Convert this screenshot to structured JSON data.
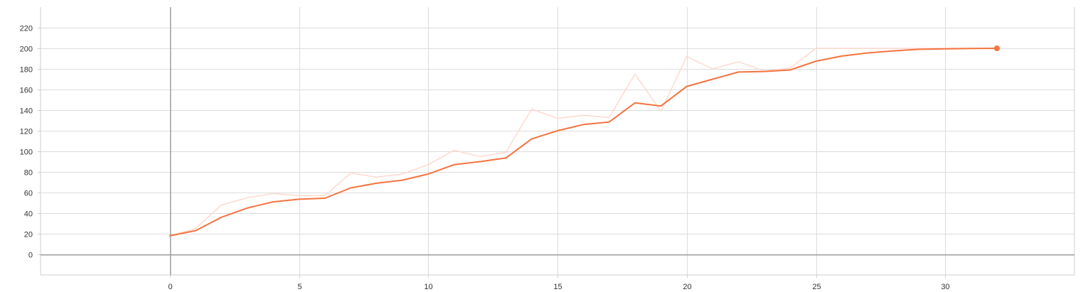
{
  "chart_data": {
    "type": "line",
    "title": "",
    "xlabel": "",
    "ylabel": "",
    "xlim": [
      -5,
      35
    ],
    "ylim": [
      -20,
      240
    ],
    "x_ticks": [
      0,
      5,
      10,
      15,
      20,
      25,
      30
    ],
    "y_ticks": [
      0,
      20,
      40,
      60,
      80,
      100,
      120,
      140,
      160,
      180,
      200,
      220
    ],
    "x_tick_labels": [
      "0",
      "5",
      "10",
      "15",
      "20",
      "25",
      "30"
    ],
    "y_tick_labels": [
      "0",
      "20",
      "40",
      "60",
      "80",
      "100",
      "120",
      "140",
      "160",
      "180",
      "200",
      "220"
    ],
    "grid": true,
    "series": [
      {
        "role": "raw",
        "color": "#ffd9cf",
        "x": [
          0,
          1,
          2,
          3,
          4,
          5,
          6,
          7,
          8,
          9,
          10,
          11,
          12,
          13,
          14,
          15,
          16,
          17,
          18,
          19,
          20,
          21,
          22,
          23,
          24,
          25,
          26,
          27,
          28,
          29,
          30,
          31,
          32
        ],
        "values": [
          18,
          25,
          48,
          55,
          59,
          57,
          57,
          79,
          75,
          78,
          87,
          101,
          95,
          99,
          141,
          132,
          135,
          133,
          175,
          139,
          192,
          180,
          187,
          178,
          181,
          200,
          200,
          200,
          200,
          200,
          200,
          200,
          200
        ]
      },
      {
        "role": "smoothed",
        "color": "#f4733f",
        "x": [
          0,
          1,
          2,
          3,
          4,
          5,
          6,
          7,
          8,
          9,
          10,
          11,
          12,
          13,
          14,
          15,
          16,
          17,
          18,
          19,
          20,
          21,
          22,
          23,
          24,
          25,
          26,
          27,
          28,
          29,
          30,
          31,
          32
        ],
        "values": [
          18,
          23,
          36,
          45,
          51,
          53.5,
          54.5,
          64.5,
          69,
          72,
          78,
          87,
          90,
          93.5,
          112,
          120,
          126,
          128.5,
          147,
          144,
          163,
          170,
          177,
          177.5,
          179,
          187.5,
          192.5,
          195.5,
          197.5,
          199,
          199.5,
          199.8,
          200
        ]
      }
    ]
  }
}
